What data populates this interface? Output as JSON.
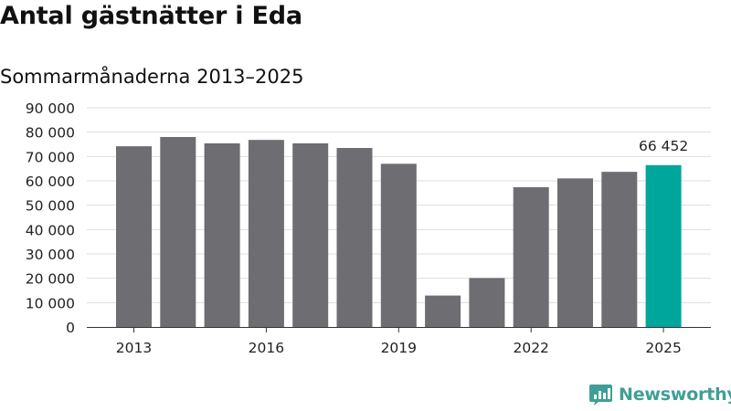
{
  "header": {
    "title": "Antal gästnätter i Eda",
    "subtitle": "Sommarmånaderna 2013–2025"
  },
  "chart_data": {
    "type": "bar",
    "categories": [
      "2013",
      "2014",
      "2015",
      "2016",
      "2017",
      "2018",
      "2019",
      "2020",
      "2021",
      "2022",
      "2023",
      "2024",
      "2025"
    ],
    "values": [
      74200,
      78000,
      75400,
      76800,
      75400,
      73500,
      67000,
      12900,
      20100,
      57400,
      61000,
      63700,
      66452
    ],
    "x_tick_labels": [
      "2013",
      "2016",
      "2019",
      "2022",
      "2025"
    ],
    "y_tick_labels": [
      "0",
      "10 000",
      "20 000",
      "30 000",
      "40 000",
      "50 000",
      "60 000",
      "70 000",
      "80 000",
      "90 000"
    ],
    "ylim": [
      0,
      90000
    ],
    "grid": true,
    "highlight": {
      "category": "2025",
      "label": "66 452"
    },
    "colors": {
      "bar": "#6e6d72",
      "highlight": "#00a69c",
      "grid": "#dddddd"
    }
  },
  "brand": {
    "name": "Newsworthy",
    "icon": "newsworthy-logo-icon",
    "color": "#3f9f96"
  }
}
